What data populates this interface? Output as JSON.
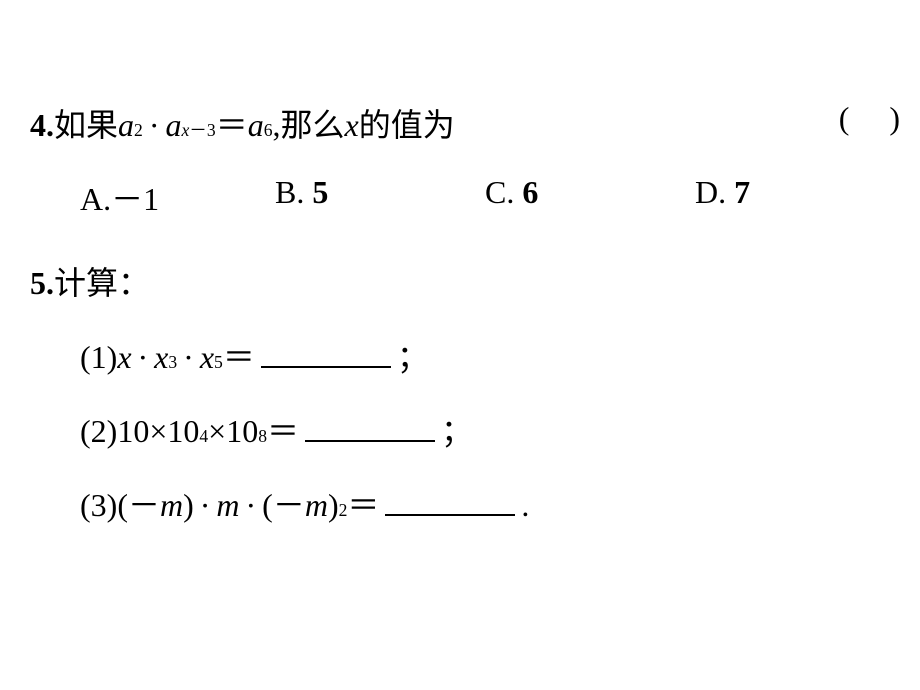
{
  "q4": {
    "num": "4.",
    "pre": "如果 ",
    "expr_a": "a",
    "sup2": "2",
    "dot": "·",
    "expr_a2": "a",
    "sup_xm3_x": "x",
    "sup_xm3_minus": "－",
    "sup_xm3_3": "3",
    "eq": "＝",
    "expr_a3": "a",
    "sup6": "6",
    "mid": " ,那么 ",
    "x": "x",
    "post": " 的值为",
    "paren_open": "(",
    "paren_close": ")"
  },
  "q4_opts": {
    "A_label": "A.",
    "A_val": "－1",
    "B_label": "B.",
    "B_val": "5",
    "C_label": "C.",
    "C_val": "6",
    "D_label": "D.",
    "D_val": "7"
  },
  "q5_head": {
    "num": "5.",
    "text": "计算："
  },
  "q5_1": {
    "label": "(1)",
    "x1": "x",
    "dot": "·",
    "x2": "x",
    "sup3": "3",
    "x3": "x",
    "sup5": "5",
    "eq": "＝",
    "semi": "；"
  },
  "q5_2": {
    "label": "(2)",
    "t1": "10",
    "times": "×",
    "t2": "10",
    "sup4": "4",
    "t3": "10",
    "sup8": "8",
    "eq": "＝",
    "semi": "；"
  },
  "q5_3": {
    "label": "(3)",
    "open": "(",
    "neg": "－",
    "m1": "m",
    "close": ")",
    "dot": "·",
    "m2": "m",
    "m3": "m",
    "sup2": "2",
    "eq": "＝",
    "period": "."
  }
}
